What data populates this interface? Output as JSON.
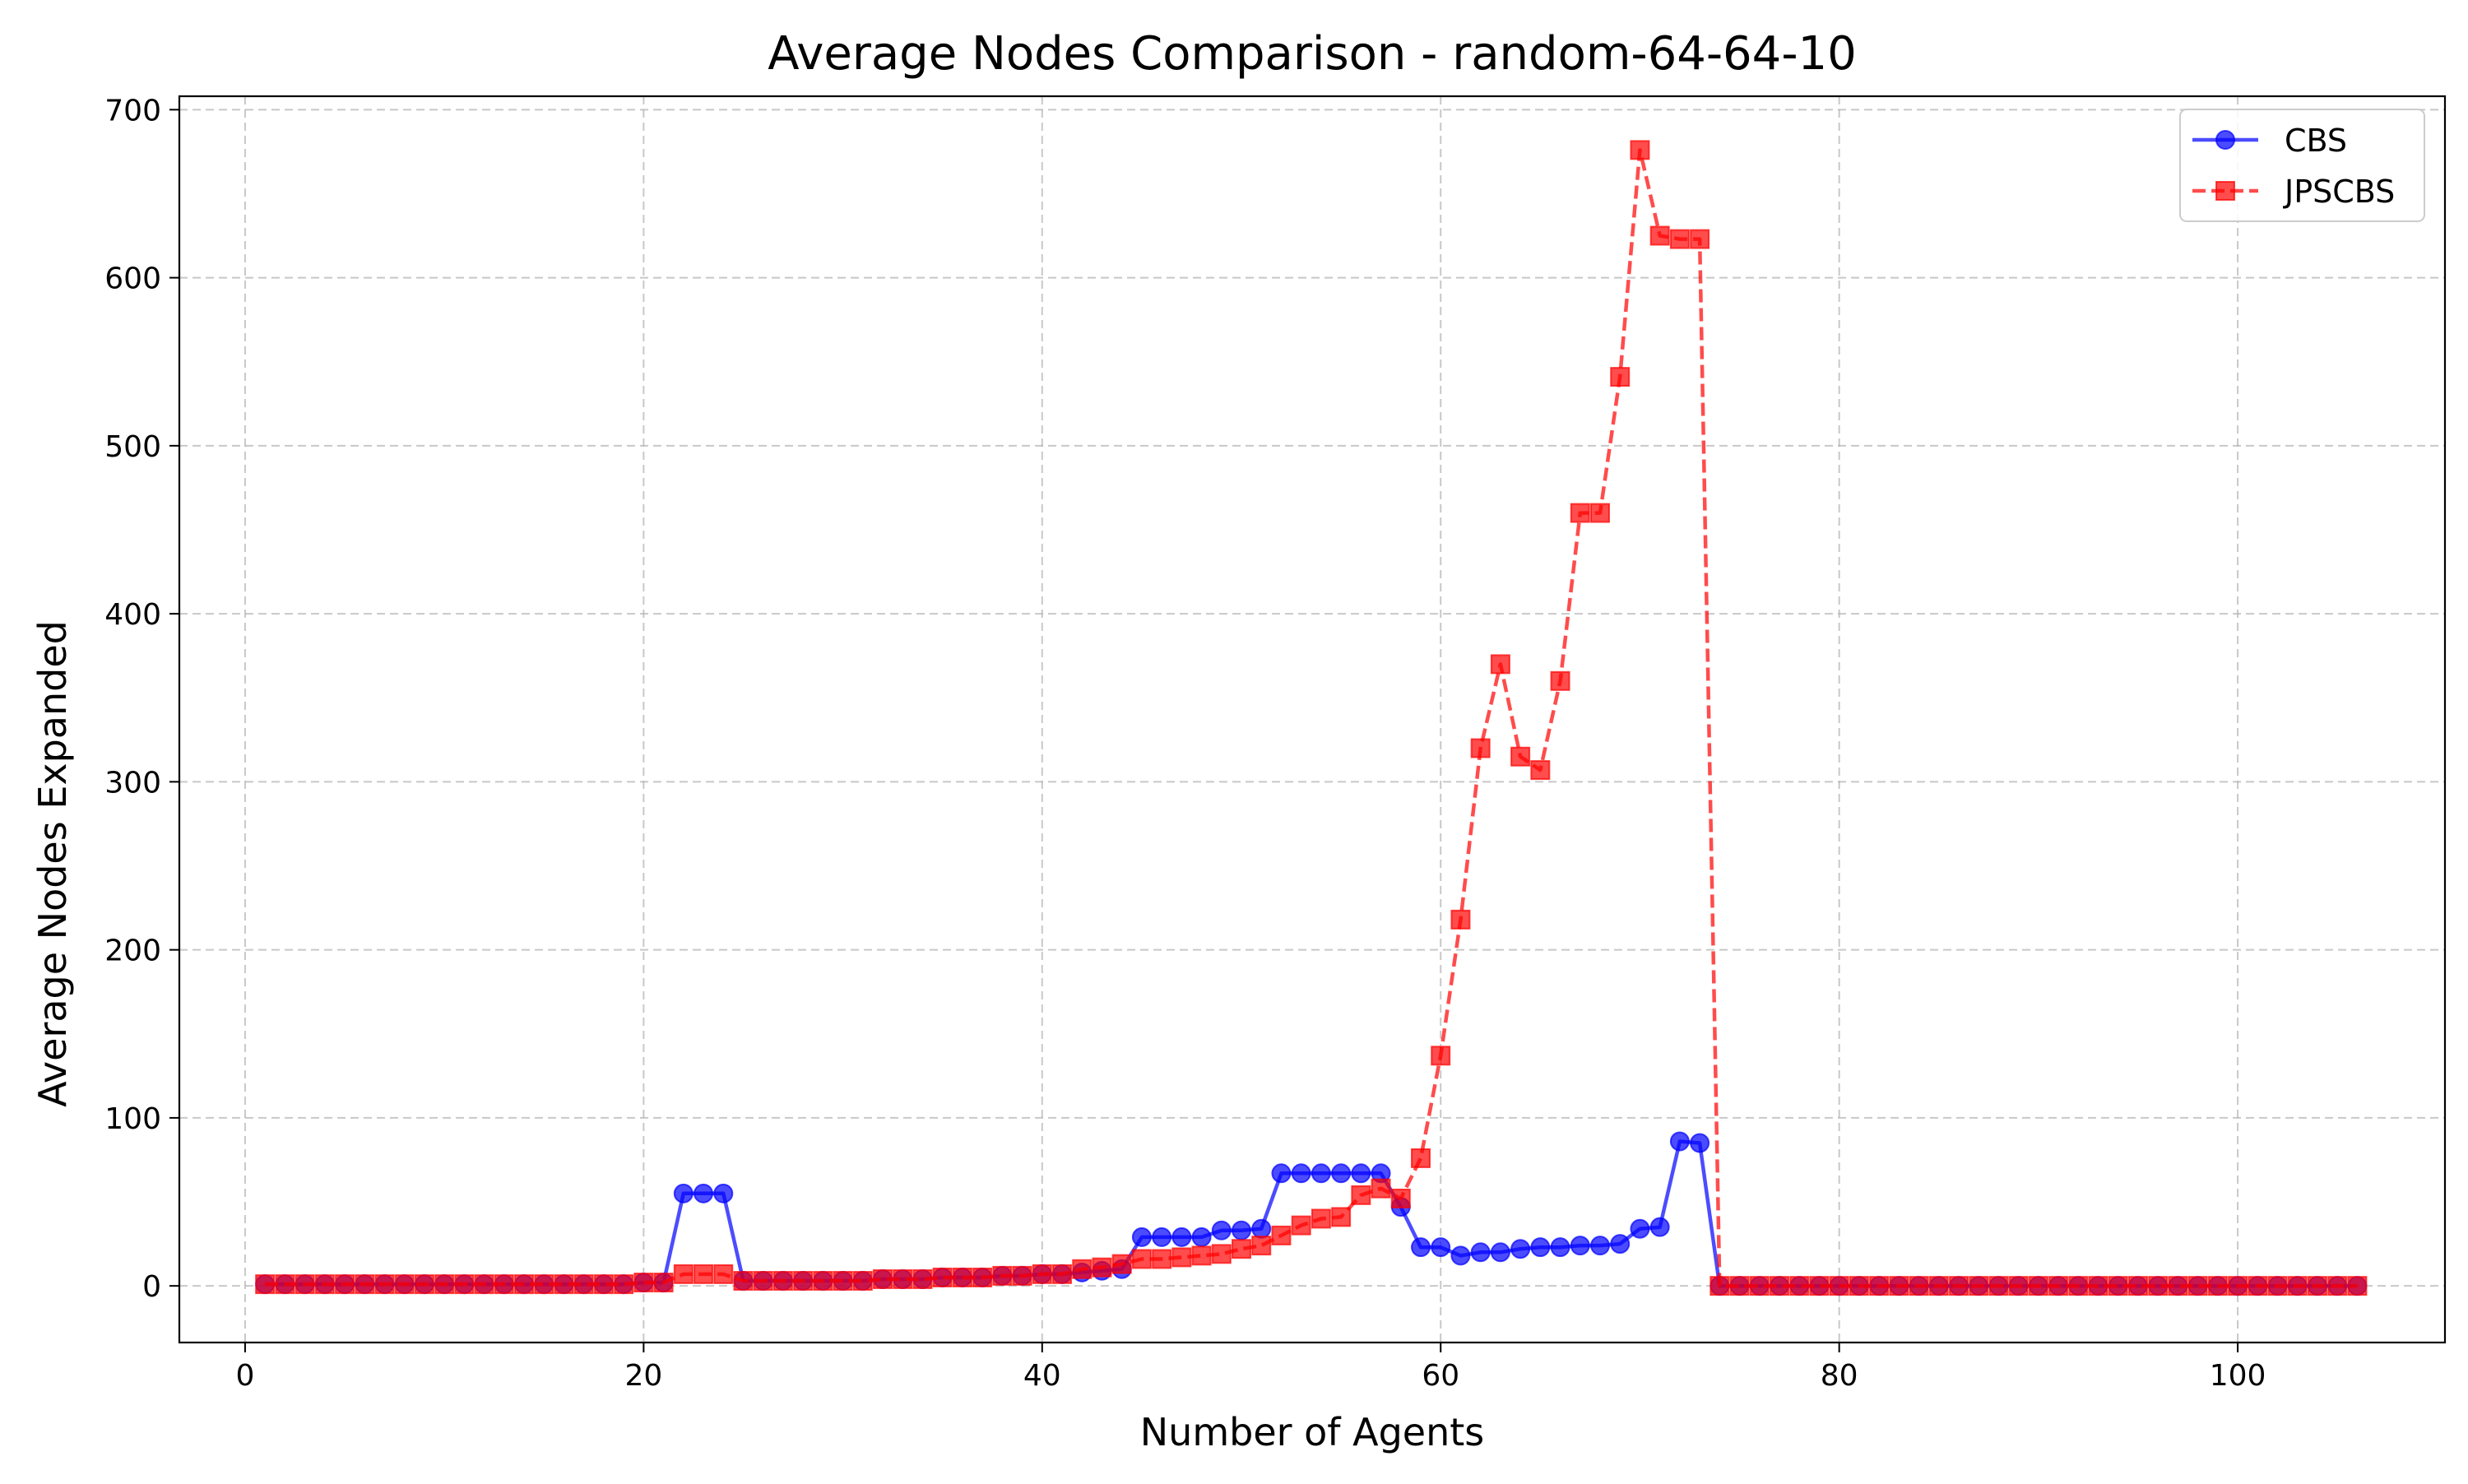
{
  "chart_data": {
    "type": "line",
    "title": "Average Nodes Comparison - random-64-64-10",
    "xlabel": "Number of Agents",
    "ylabel": "Average Nodes Expanded",
    "xlim": [
      -3.3,
      110.4
    ],
    "ylim": [
      -33.7,
      708
    ],
    "xticks": [
      0,
      20,
      40,
      60,
      80,
      100
    ],
    "yticks": [
      0,
      100,
      200,
      300,
      400,
      500,
      600,
      700
    ],
    "grid": true,
    "legend_position": "top-right",
    "series": [
      {
        "name": "CBS",
        "color": "#0000ff",
        "marker": "circle",
        "linestyle": "solid",
        "x": [
          1,
          2,
          3,
          4,
          5,
          6,
          7,
          8,
          9,
          10,
          11,
          12,
          13,
          14,
          15,
          16,
          17,
          18,
          19,
          20,
          21,
          22,
          23,
          24,
          25,
          26,
          27,
          28,
          29,
          30,
          31,
          32,
          33,
          34,
          35,
          36,
          37,
          38,
          39,
          40,
          41,
          42,
          43,
          44,
          45,
          46,
          47,
          48,
          49,
          50,
          51,
          52,
          53,
          54,
          55,
          56,
          57,
          58,
          59,
          60,
          61,
          62,
          63,
          64,
          65,
          66,
          67,
          68,
          69,
          70,
          71,
          72,
          73,
          74,
          75,
          76,
          77,
          78,
          79,
          80,
          81,
          82,
          83,
          84,
          85,
          86,
          87,
          88,
          89,
          90,
          91,
          92,
          93,
          94,
          95,
          96,
          97,
          98,
          99,
          100,
          101,
          102,
          103,
          104,
          105,
          106
        ],
        "y": [
          1,
          1,
          1,
          1,
          1,
          1,
          1,
          1,
          1,
          1,
          1,
          1,
          1,
          1,
          1,
          1,
          1,
          1,
          1,
          2,
          2,
          55,
          55,
          55,
          3,
          3,
          3,
          3,
          3,
          3,
          3,
          4,
          4,
          4,
          5,
          5,
          5,
          6,
          6,
          7,
          7,
          8,
          9,
          10,
          29,
          29,
          29,
          29,
          33,
          33,
          34,
          67,
          67,
          67,
          67,
          67,
          67,
          47,
          23,
          23,
          18,
          20,
          20,
          22,
          23,
          23,
          24,
          24,
          25,
          34,
          35,
          86,
          85,
          0,
          0,
          0,
          0,
          0,
          0,
          0,
          0,
          0,
          0,
          0,
          0,
          0,
          0,
          0,
          0,
          0,
          0,
          0,
          0,
          0,
          0,
          0,
          0,
          0,
          0,
          0,
          0,
          0,
          0,
          0,
          0,
          0
        ]
      },
      {
        "name": "JPSCBS",
        "color": "#ff0000",
        "marker": "square",
        "linestyle": "dashed",
        "x": [
          1,
          2,
          3,
          4,
          5,
          6,
          7,
          8,
          9,
          10,
          11,
          12,
          13,
          14,
          15,
          16,
          17,
          18,
          19,
          20,
          21,
          22,
          23,
          24,
          25,
          26,
          27,
          28,
          29,
          30,
          31,
          32,
          33,
          34,
          35,
          36,
          37,
          38,
          39,
          40,
          41,
          42,
          43,
          44,
          45,
          46,
          47,
          48,
          49,
          50,
          51,
          52,
          53,
          54,
          55,
          56,
          57,
          58,
          59,
          60,
          61,
          62,
          63,
          64,
          65,
          66,
          67,
          68,
          69,
          70,
          71,
          72,
          73,
          74,
          75,
          76,
          77,
          78,
          79,
          80,
          81,
          82,
          83,
          84,
          85,
          86,
          87,
          88,
          89,
          90,
          91,
          92,
          93,
          94,
          95,
          96,
          97,
          98,
          99,
          100,
          101,
          102,
          103,
          104,
          105,
          106
        ],
        "y": [
          1,
          1,
          1,
          1,
          1,
          1,
          1,
          1,
          1,
          1,
          1,
          1,
          1,
          1,
          1,
          1,
          1,
          1,
          1,
          2,
          2,
          7,
          7,
          7,
          3,
          3,
          3,
          3,
          3,
          3,
          3,
          4,
          4,
          4,
          5,
          5,
          5,
          6,
          6,
          7,
          7,
          10,
          11,
          13,
          16,
          16,
          17,
          18,
          19,
          22,
          24,
          30,
          36,
          40,
          41,
          54,
          58,
          52,
          76,
          137,
          218,
          320,
          370,
          315,
          307,
          360,
          460,
          460,
          541,
          676,
          625,
          623,
          623,
          0,
          0,
          0,
          0,
          0,
          0,
          0,
          0,
          0,
          0,
          0,
          0,
          0,
          0,
          0,
          0,
          0,
          0,
          0,
          0,
          0,
          0,
          0,
          0,
          0,
          0,
          0,
          0,
          0,
          0,
          0,
          0,
          0
        ]
      }
    ]
  }
}
